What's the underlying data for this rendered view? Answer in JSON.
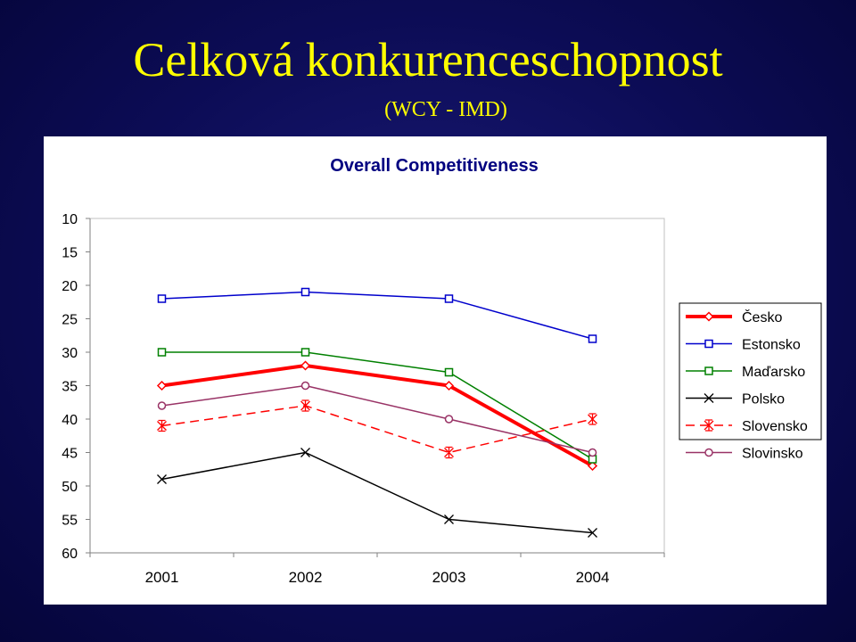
{
  "slide": {
    "title": "Celková konkurenceschopnost",
    "subtitle": "(WCY - IMD)"
  },
  "colors": {
    "background": "#0c0c55",
    "title": "#ffff00"
  },
  "chart_data": {
    "type": "line",
    "title": "Overall Competitiveness",
    "xlabel": "",
    "ylabel": "",
    "categories": [
      "2001",
      "2002",
      "2003",
      "2004"
    ],
    "ylim": [
      10,
      60
    ],
    "y_inverted": true,
    "yticks": [
      10,
      15,
      20,
      25,
      30,
      35,
      40,
      45,
      50,
      55,
      60
    ],
    "grid": false,
    "legend": "right",
    "series": [
      {
        "name": "Česko",
        "values": [
          35,
          32,
          35,
          47
        ],
        "color": "#ff0000",
        "marker": "diamond",
        "style": "solid-bold"
      },
      {
        "name": "Estonsko",
        "values": [
          22,
          21,
          22,
          28
        ],
        "color": "#0000cc",
        "marker": "square",
        "style": "solid"
      },
      {
        "name": "Maďarsko",
        "values": [
          30,
          30,
          33,
          46
        ],
        "color": "#008000",
        "marker": "square",
        "style": "solid"
      },
      {
        "name": "Polsko",
        "values": [
          49,
          45,
          55,
          57
        ],
        "color": "#000000",
        "marker": "x",
        "style": "solid"
      },
      {
        "name": "Slovensko",
        "values": [
          41,
          38,
          45,
          40
        ],
        "color": "#ff0000",
        "marker": "star",
        "style": "dashed"
      },
      {
        "name": "Slovinsko",
        "values": [
          38,
          35,
          40,
          45
        ],
        "color": "#993366",
        "marker": "circle",
        "style": "solid"
      }
    ]
  }
}
